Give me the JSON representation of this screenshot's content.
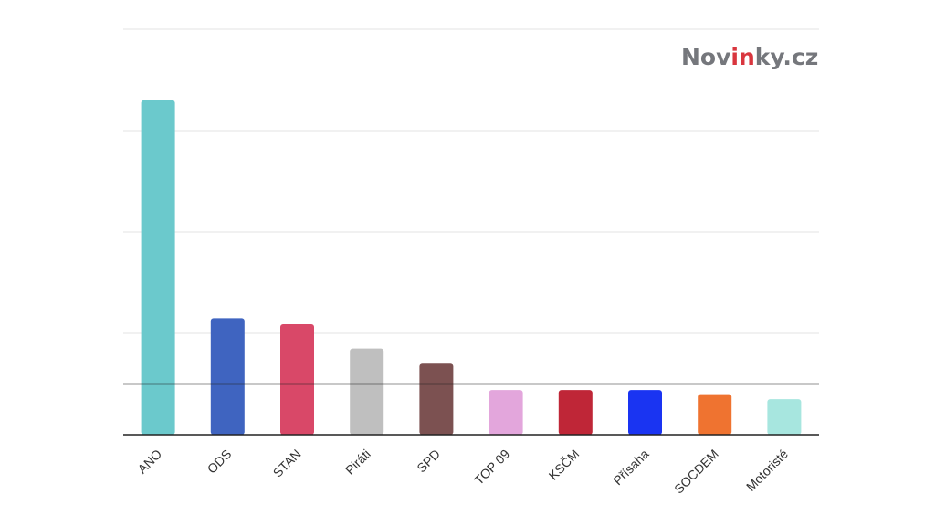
{
  "brand": {
    "logo_prefix": "Nov",
    "logo_highlight": "in",
    "logo_suffix": "ky.cz",
    "logo_color": "#75777c",
    "logo_highlight_color": "#d9363e"
  },
  "chart_data": {
    "type": "bar",
    "categories": [
      "ANO",
      "ODS",
      "STAN",
      "Piráti",
      "SPD",
      "TOP 09",
      "KSČM",
      "Přísaha",
      "SOCDEM",
      "Motoristé"
    ],
    "values": [
      33,
      11.5,
      10.9,
      8.5,
      7,
      4.4,
      4.4,
      4.4,
      4,
      3.5
    ],
    "colors": [
      "#6bc9cc",
      "#3f64c0",
      "#d94868",
      "#bfbfbf",
      "#7c5151",
      "#e3a6dc",
      "#bf2637",
      "#1a34f2",
      "#ef7330",
      "#a7e6df"
    ],
    "ylim": [
      0,
      40
    ],
    "yticks": [
      0,
      10,
      20,
      30,
      40
    ],
    "threshold": 5,
    "grid": true,
    "xlabel": "",
    "ylabel": ""
  }
}
